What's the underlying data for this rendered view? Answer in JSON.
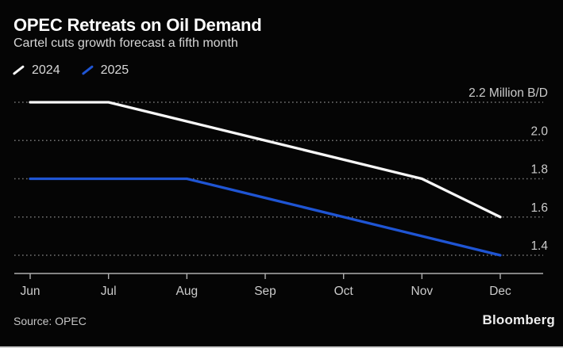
{
  "header": {
    "title": "OPEC Retreats on Oil Demand",
    "subtitle": "Cartel cuts growth forecast a fifth month"
  },
  "legend": [
    {
      "label": "2024",
      "color": "#f7f7f7"
    },
    {
      "label": "2025",
      "color": "#1f55d4"
    }
  ],
  "footer": {
    "source": "Source: OPEC",
    "brand": "Bloomberg"
  },
  "colors": {
    "background": "#050505",
    "gridline": "#8f8f8f",
    "axis": "#aeaeae",
    "tick_label": "#cbcbcb",
    "series_2024": "#f7f7f7",
    "series_2025": "#1f55d4"
  },
  "chart_data": {
    "type": "line",
    "title": "OPEC Retreats on Oil Demand",
    "subtitle": "Cartel cuts growth forecast a fifth month",
    "categories": [
      "Jun",
      "Jul",
      "Aug",
      "Sep",
      "Oct",
      "Nov",
      "Dec"
    ],
    "series": [
      {
        "name": "2024",
        "color": "#f7f7f7",
        "values": [
          2.2,
          2.2,
          2.1,
          2.0,
          1.9,
          1.8,
          1.6
        ]
      },
      {
        "name": "2025",
        "color": "#1f55d4",
        "values": [
          1.8,
          1.8,
          1.8,
          1.7,
          1.6,
          1.5,
          1.4
        ]
      }
    ],
    "unit_label": "Million B/D",
    "yticks": [
      2.2,
      2.0,
      1.8,
      1.6,
      1.4
    ],
    "ylim": [
      1.33,
      2.28
    ],
    "xlabel": "",
    "ylabel": "Million B/D",
    "grid": "dotted-horizontal",
    "legend_position": "top-left",
    "source": "OPEC"
  }
}
